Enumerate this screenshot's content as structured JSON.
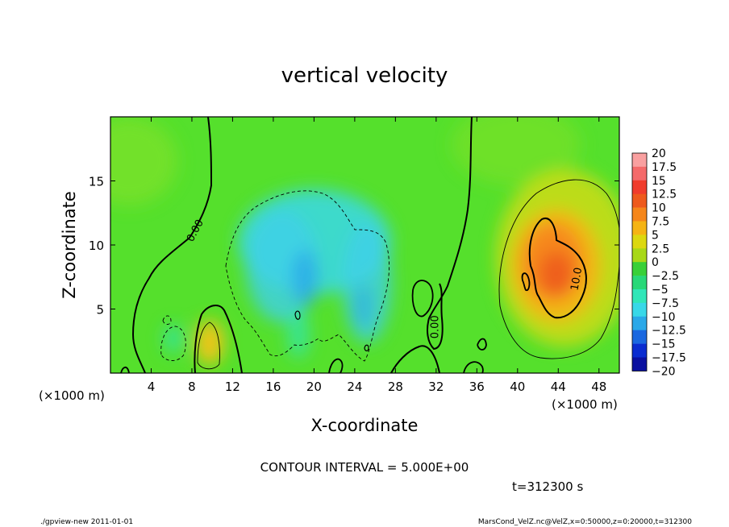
{
  "chart_data": {
    "type": "heatmap",
    "title": "vertical velocity",
    "xlabel": "X-coordinate",
    "ylabel": "Z-coordinate",
    "x_unit_left": "(×1000 m)",
    "x_unit_right": "(×1000 m)",
    "xlim": [
      0,
      50
    ],
    "ylim": [
      0,
      20
    ],
    "x_ticks": [
      4,
      8,
      12,
      16,
      20,
      24,
      28,
      32,
      36,
      40,
      44,
      48
    ],
    "y_ticks": [
      5,
      10,
      15
    ],
    "contour_interval_text": "CONTOUR INTERVAL = 5.000E+00",
    "time_text": "t=312300 s",
    "contour_labels": [
      {
        "text": "0.00",
        "x": 8.6,
        "z": 11.0,
        "angle": -62
      },
      {
        "text": "0.00",
        "x": 32.2,
        "z": 3.6,
        "angle": -90
      },
      {
        "text": "10.0",
        "x": 46.1,
        "z": 7.3,
        "angle": -80
      }
    ],
    "colorbar": {
      "levels": [
        "20",
        "17.5",
        "15",
        "12.5",
        "10",
        "7.5",
        "5",
        "2.5",
        "0",
        "−2.5",
        "−5",
        "−7.5",
        "−10",
        "−12.5",
        "−15",
        "−17.5",
        "−20"
      ],
      "colors": [
        "#f9a0a0",
        "#f46a6a",
        "#f03c2c",
        "#ee5a1c",
        "#f5861a",
        "#f5b414",
        "#dcd810",
        "#a8d818",
        "#38d038",
        "#28d878",
        "#30e6b8",
        "#38d8e8",
        "#2aa8e8",
        "#1a68e0",
        "#0a2cd0",
        "#0a10a0",
        "#6a1ab0"
      ]
    },
    "field_features": [
      {
        "kind": "updraft",
        "x": 43.5,
        "z": 8.0,
        "peak": 12.5
      },
      {
        "kind": "updraft",
        "x": 9.8,
        "z": 2.3,
        "peak": 7.5
      },
      {
        "kind": "downdraft",
        "x": 19.0,
        "z": 8.5,
        "peak": -7.5
      },
      {
        "kind": "downdraft",
        "x": 25.0,
        "z": 7.5,
        "peak": -7.5
      }
    ],
    "grid": false
  },
  "footer": {
    "left": "./gpview-new   2011-01-01",
    "right": "MarsCond_VelZ.nc@VelZ,x=0:50000,z=0:20000,t=312300"
  }
}
